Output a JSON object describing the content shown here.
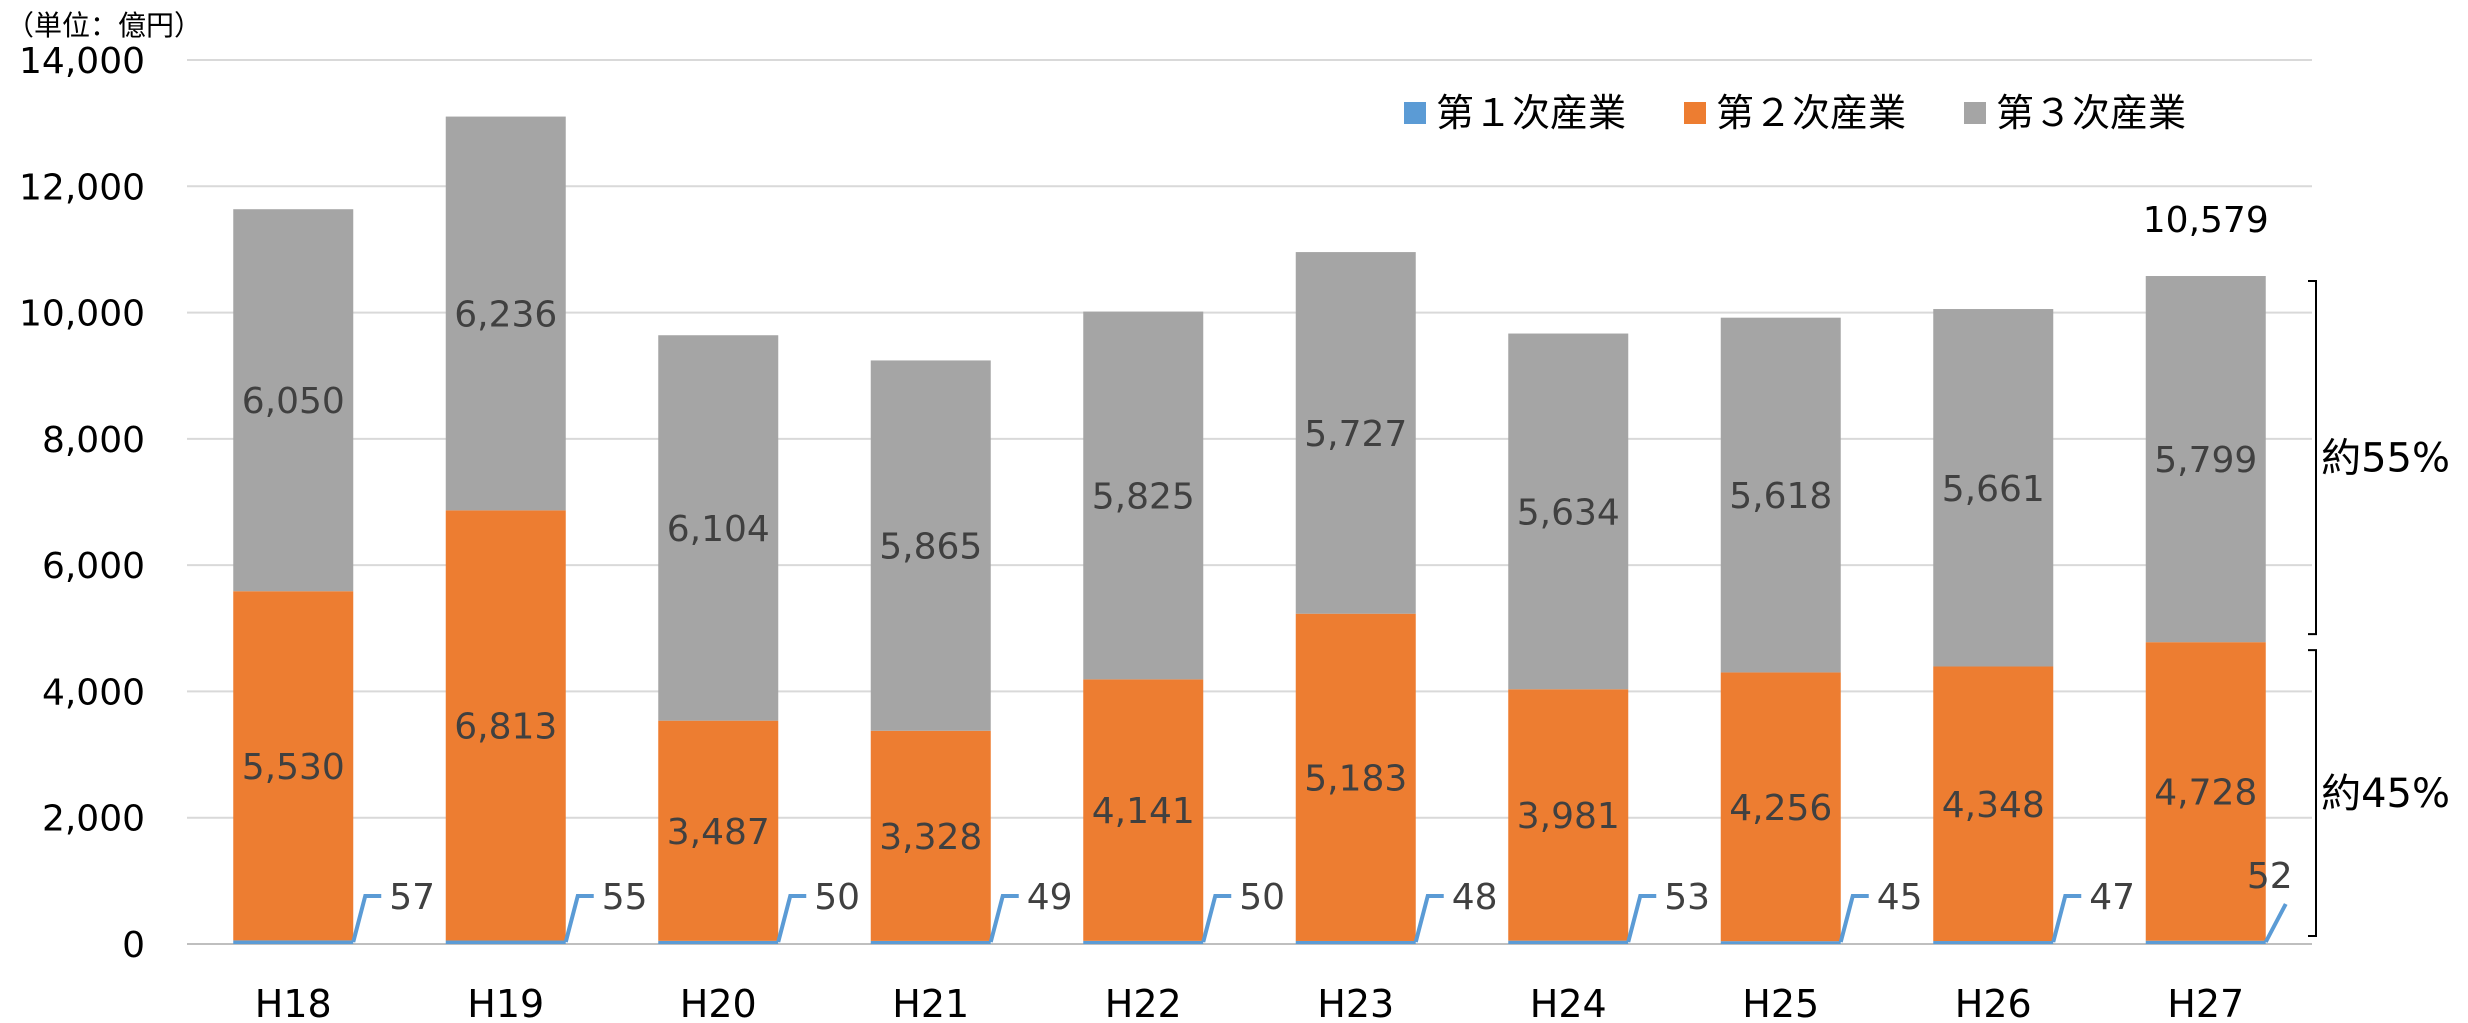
{
  "chart_data": {
    "type": "bar",
    "stacked": true,
    "unit_label": "（単位：億円）",
    "categories": [
      "H18",
      "H19",
      "H20",
      "H21",
      "H22",
      "H23",
      "H24",
      "H25",
      "H26",
      "H27"
    ],
    "series": [
      {
        "name": "第１次産業",
        "color": "#5B9BD5",
        "values": [
          57,
          55,
          50,
          49,
          50,
          48,
          53,
          45,
          47,
          52
        ]
      },
      {
        "name": "第２次産業",
        "color": "#ED7D31",
        "values": [
          5530,
          6813,
          3487,
          3328,
          4141,
          5183,
          3981,
          4256,
          4348,
          4728
        ]
      },
      {
        "name": "第３次産業",
        "color": "#A5A5A5",
        "values": [
          6050,
          6236,
          6104,
          5865,
          5825,
          5727,
          5634,
          5618,
          5661,
          5799
        ]
      }
    ],
    "value_labels": {
      "primary": [
        "57",
        "55",
        "50",
        "49",
        "50",
        "48",
        "53",
        "45",
        "47",
        "52"
      ],
      "secondary": [
        "5,530",
        "6,813",
        "3,487",
        "3,328",
        "4,141",
        "5,183",
        "3,981",
        "4,256",
        "4,348",
        "4,728"
      ],
      "tertiary": [
        "6,050",
        "6,236",
        "6,104",
        "5,865",
        "5,825",
        "5,727",
        "5,634",
        "5,618",
        "5,661",
        "5,799"
      ]
    },
    "total_label": "10,579",
    "y_ticks": [
      "0",
      "2,000",
      "4,000",
      "6,000",
      "8,000",
      "10,000",
      "12,000",
      "14,000"
    ],
    "ylim": [
      0,
      14000
    ],
    "grid": true,
    "legend_position": "top-right",
    "brackets": [
      "約55%",
      "約45%"
    ]
  }
}
